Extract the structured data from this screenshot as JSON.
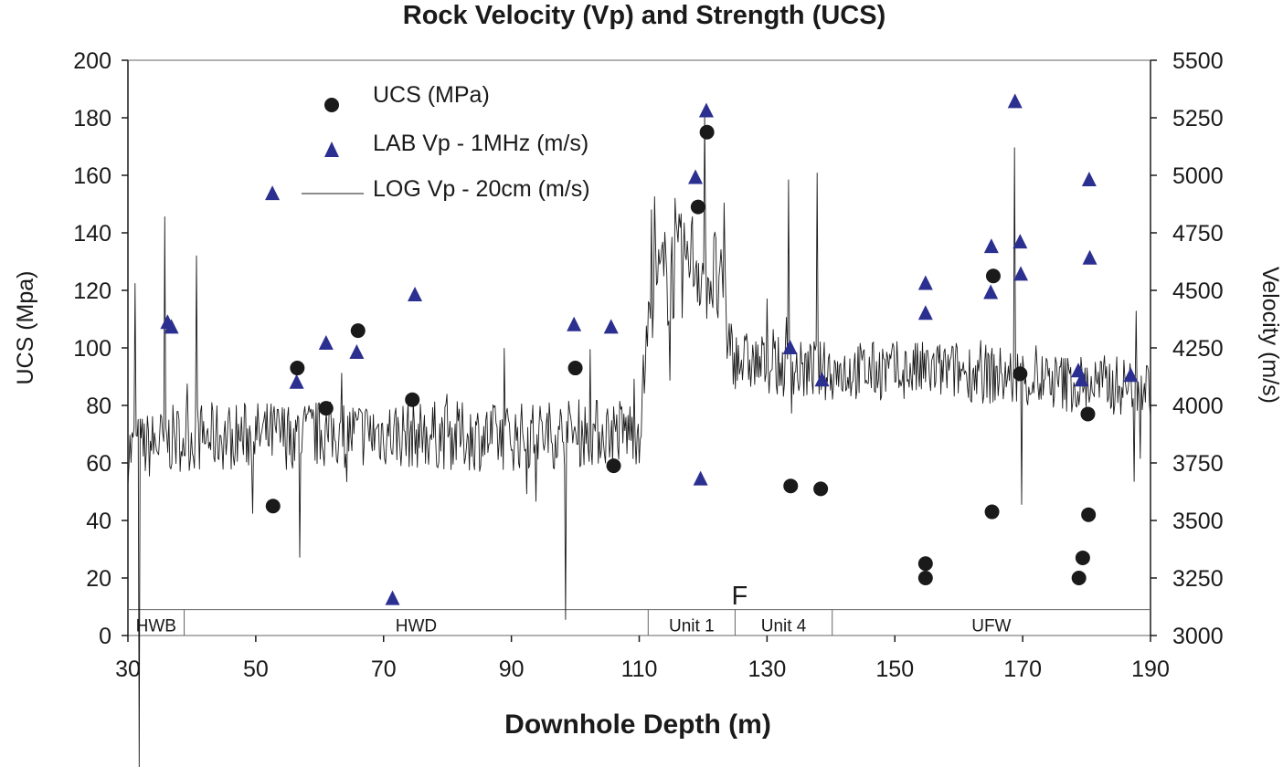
{
  "chart_data": {
    "type": "scatter",
    "title": "Rock Velocity (Vp) and Strength (UCS)",
    "xlabel": "Downhole Depth (m)",
    "ylabel_left": "UCS (Mpa)",
    "ylabel_right": "Velocity (m/s)",
    "xlim": [
      30,
      190
    ],
    "ylim_left": [
      0,
      200
    ],
    "ylim_right": [
      3000,
      5500
    ],
    "x_ticks": [
      "30",
      "50",
      "70",
      "90",
      "110",
      "130",
      "150",
      "170",
      "190"
    ],
    "y_left_ticks": [
      "0",
      "20",
      "40",
      "60",
      "80",
      "100",
      "120",
      "140",
      "160",
      "180",
      "200"
    ],
    "y_right_ticks": [
      "3000",
      "3250",
      "3500",
      "3750",
      "4000",
      "4250",
      "4500",
      "4750",
      "5000",
      "5250",
      "5500"
    ],
    "grid": false,
    "legend_position": "top-left",
    "colors": {
      "ucs": "#1a1a1a",
      "lab_vp": "#2b2f8f",
      "log_vp": "#1a1a1a"
    },
    "series": [
      {
        "name": "UCS (MPa)",
        "marker": "circle",
        "axis": "left",
        "points": [
          [
            52.7,
            45
          ],
          [
            56.5,
            93
          ],
          [
            61,
            79
          ],
          [
            66,
            106
          ],
          [
            74.5,
            82
          ],
          [
            100,
            93
          ],
          [
            106,
            59
          ],
          [
            119.2,
            149
          ],
          [
            120.6,
            175
          ],
          [
            133.7,
            52
          ],
          [
            138.4,
            51
          ],
          [
            154.8,
            25
          ],
          [
            154.8,
            20
          ],
          [
            165.2,
            43
          ],
          [
            165.4,
            125
          ],
          [
            169.6,
            91
          ],
          [
            178.8,
            20
          ],
          [
            179.4,
            27
          ],
          [
            180.2,
            77
          ],
          [
            180.3,
            42
          ]
        ]
      },
      {
        "name": "LAB Vp - 1MHz (m/s)",
        "marker": "triangle",
        "axis": "right",
        "points": [
          [
            36.2,
            4360
          ],
          [
            36.8,
            4340
          ],
          [
            52.6,
            4920
          ],
          [
            56.4,
            4100
          ],
          [
            61,
            4270
          ],
          [
            65.8,
            4230
          ],
          [
            71.4,
            3160
          ],
          [
            74.9,
            4480
          ],
          [
            99.8,
            4350
          ],
          [
            105.6,
            4340
          ],
          [
            118.8,
            4990
          ],
          [
            119.6,
            3680
          ],
          [
            120.5,
            5280
          ],
          [
            133.6,
            4250
          ],
          [
            138.6,
            4110
          ],
          [
            154.8,
            4530
          ],
          [
            154.8,
            4400
          ],
          [
            165,
            4490
          ],
          [
            165.1,
            4690
          ],
          [
            168.8,
            5320
          ],
          [
            169.6,
            4710
          ],
          [
            169.7,
            4570
          ],
          [
            178.7,
            4150
          ],
          [
            179.2,
            4110
          ],
          [
            180.4,
            4980
          ],
          [
            180.5,
            4640
          ],
          [
            186.9,
            4130
          ]
        ]
      },
      {
        "name": "LOG Vp - 20cm (m/s)",
        "marker": "line",
        "axis": "right",
        "profile_knots": [
          [
            30,
            3800
          ],
          [
            38,
            3860
          ],
          [
            52,
            3870
          ],
          [
            70,
            3880
          ],
          [
            88,
            3860
          ],
          [
            100,
            3880
          ],
          [
            110,
            3890
          ],
          [
            112,
            4500
          ],
          [
            118,
            4650
          ],
          [
            122,
            4550
          ],
          [
            125,
            4200
          ],
          [
            135,
            4150
          ],
          [
            150,
            4150
          ],
          [
            160,
            4150
          ],
          [
            175,
            4100
          ],
          [
            190,
            4080
          ]
        ],
        "extremes": [
          [
            31.2,
            4530
          ],
          [
            31.8,
            2430
          ],
          [
            35.8,
            4820
          ],
          [
            40.7,
            4650
          ],
          [
            56.9,
            3340
          ],
          [
            98.5,
            3070
          ],
          [
            111.9,
            4850
          ],
          [
            115.6,
            4900
          ],
          [
            120.3,
            5270
          ],
          [
            123.2,
            4880
          ],
          [
            133.3,
            4980
          ],
          [
            137.8,
            5010
          ],
          [
            168.7,
            5120
          ],
          [
            169.9,
            3570
          ],
          [
            187.5,
            3670
          ]
        ]
      }
    ],
    "unit_bar": {
      "level": 9,
      "units": [
        {
          "label": "HWB",
          "from": 30,
          "to": 38.8
        },
        {
          "label": "HWD",
          "from": 38.8,
          "to": 111.4
        },
        {
          "label": "Unit 1",
          "from": 111.4,
          "to": 125
        },
        {
          "label": "Unit 4",
          "from": 125,
          "to": 140.2
        },
        {
          "label": "UFW",
          "from": 140.2,
          "to": 190
        }
      ]
    },
    "annotation": {
      "text": "F",
      "x": 125,
      "level": 14
    }
  }
}
